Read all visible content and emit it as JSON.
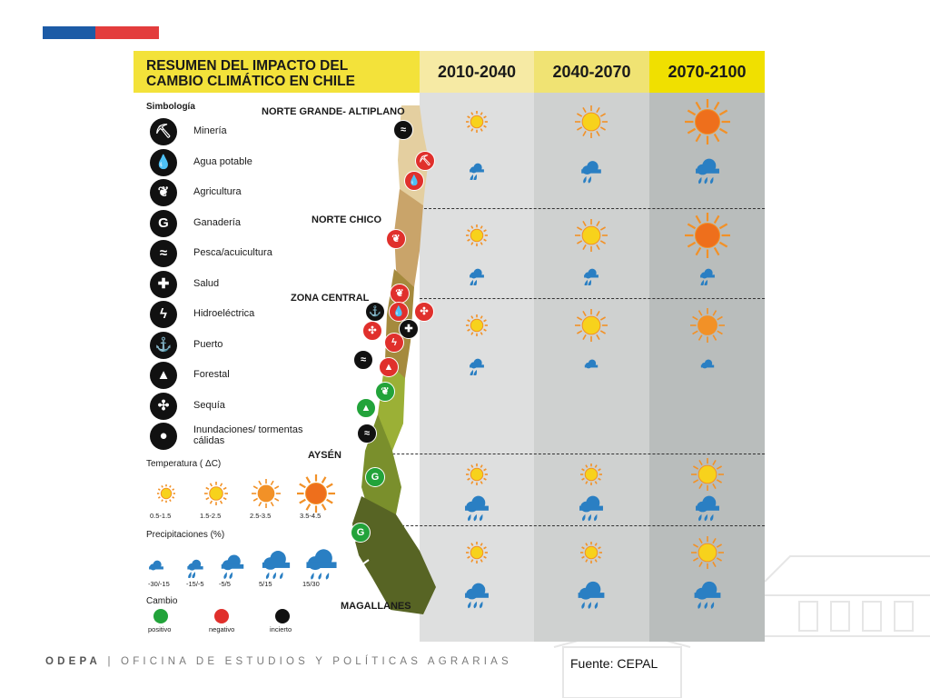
{
  "colors": {
    "flag_blue": "#1c5ba6",
    "flag_red": "#e33d3d",
    "title_yellow": "#f3e23a",
    "col1_bg": "#dedfdf",
    "col2_bg": "#cfd1d0",
    "col3_bg": "#b9bdbc",
    "head1": "#f6eaa4",
    "head2": "#f0e373",
    "head3": "#f0e000",
    "sun_yellow": "#f7d21c",
    "sun_orange": "#f29127",
    "sun_red": "#ee6f1c",
    "cloud_blue": "#2a7fc3",
    "positive": "#22a33a",
    "negative": "#e0302c",
    "uncertain": "#111111"
  },
  "title": "RESUMEN DEL IMPACTO DEL CAMBIO CLIMÁTICO EN CHILE",
  "periods": [
    "2010-2040",
    "2040-2070",
    "2070-2100"
  ],
  "legend": {
    "heading": "Simbología",
    "items": [
      {
        "label": "Minería",
        "icon": "mining-icon"
      },
      {
        "label": "Agua potable",
        "icon": "water-drop-icon"
      },
      {
        "label": "Agricultura",
        "icon": "agriculture-icon"
      },
      {
        "label": "Ganadería",
        "icon": "livestock-icon"
      },
      {
        "label": "Pesca/acuicultura",
        "icon": "fish-icon"
      },
      {
        "label": "Salud",
        "icon": "health-cross-icon"
      },
      {
        "label": "Hidroeléctrica",
        "icon": "lightning-icon"
      },
      {
        "label": "Puerto",
        "icon": "anchor-icon"
      },
      {
        "label": "Forestal",
        "icon": "tree-icon"
      },
      {
        "label": "Sequía",
        "icon": "drought-icon"
      },
      {
        "label": "Inundaciones/ tormentas cálidas",
        "icon": "flood-icon"
      }
    ]
  },
  "temperature_legend": {
    "heading": "Temperatura ( ΔC)",
    "items": [
      "0.5-1.5",
      "1.5-2.5",
      "2.5-3.5",
      "3.5-4.5"
    ]
  },
  "precip_legend": {
    "heading": "Precipitaciones (%)",
    "items": [
      "-30/-15",
      "-15/-5",
      "-5/5",
      "5/15",
      "15/30"
    ]
  },
  "change_legend": {
    "heading": "Cambio",
    "items": [
      "positivo",
      "negativo",
      "incierto"
    ]
  },
  "regions": [
    {
      "name": "NORTE GRANDE- ALTIPLANO",
      "temp_levels": [
        1,
        2,
        4
      ],
      "precip_levels": [
        2,
        3,
        4
      ]
    },
    {
      "name": "NORTE CHICO",
      "temp_levels": [
        1,
        2,
        4
      ],
      "precip_levels": [
        2,
        2,
        2
      ]
    },
    {
      "name": "ZONA CENTRAL",
      "temp_levels": [
        1,
        2,
        3
      ],
      "precip_levels": [
        2,
        1,
        1
      ]
    },
    {
      "name": "AYSÉN",
      "temp_levels": [
        1,
        1,
        2
      ],
      "precip_levels": [
        4,
        4,
        4
      ]
    },
    {
      "name": "MAGALLANES",
      "temp_levels": [
        1,
        1,
        2
      ],
      "precip_levels": [
        4,
        5,
        5
      ]
    }
  ],
  "footer": {
    "org": "ODEPA",
    "separator": "|",
    "org_full": "OFICINA DE ESTUDIOS Y POLÍTICAS AGRARIAS",
    "source": "Fuente: CEPAL"
  }
}
